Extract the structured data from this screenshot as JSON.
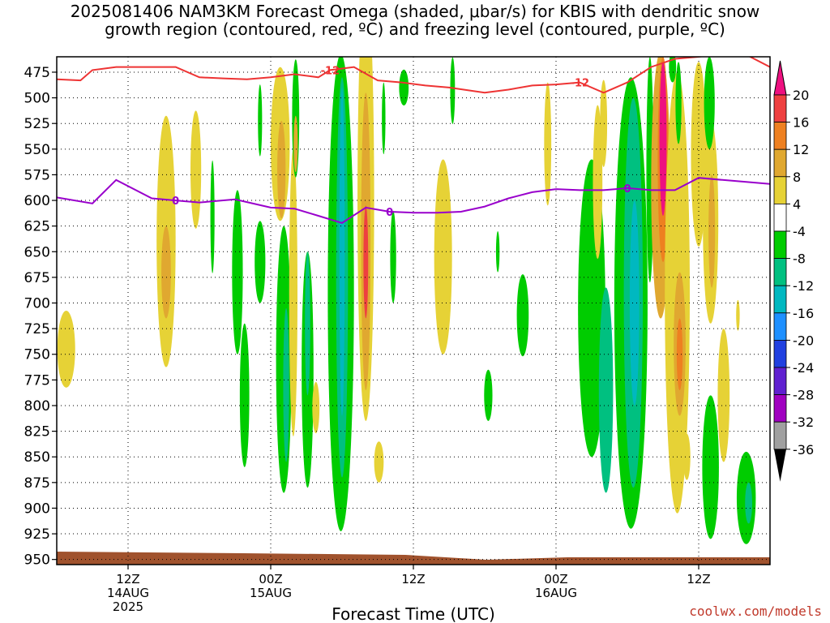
{
  "title": {
    "line1": "2025081406 NAM3KM Forecast Omega (shaded, μbar/s) for KBIS with dendritic snow",
    "line2": "growth region (contoured, red, ºC) and freezing level (contoured, purple, ºC)"
  },
  "credit": "coolwx.com/models",
  "chart_data": {
    "type": "heatmap",
    "xlabel": "Forecast Time (UTC)",
    "ylabel": "",
    "x_axis": {
      "range_hours": [
        0,
        60
      ],
      "ticks": [
        {
          "hour": 6,
          "lines": [
            "12Z",
            "14AUG",
            "2025"
          ]
        },
        {
          "hour": 18,
          "lines": [
            "00Z",
            "15AUG"
          ]
        },
        {
          "hour": 30,
          "lines": [
            "12Z"
          ]
        },
        {
          "hour": 42,
          "lines": [
            "00Z",
            "16AUG"
          ]
        },
        {
          "hour": 54,
          "lines": [
            "12Z"
          ]
        }
      ]
    },
    "y_axis": {
      "range_hPa": [
        460,
        955
      ],
      "ticks": [
        475,
        500,
        525,
        550,
        575,
        600,
        625,
        650,
        675,
        700,
        725,
        750,
        775,
        800,
        825,
        850,
        875,
        900,
        925,
        950
      ],
      "grid": true
    },
    "colorbar": {
      "labels": [
        "20",
        "16",
        "12",
        "8",
        "4",
        "-4",
        "-8",
        "-12",
        "-16",
        "-20",
        "-24",
        "-28",
        "-32",
        "-36"
      ],
      "bands": [
        {
          "from": 16,
          "to": 20,
          "color": "#ee4040"
        },
        {
          "from": 12,
          "to": 16,
          "color": "#ee8020"
        },
        {
          "from": 8,
          "to": 12,
          "color": "#e0a830"
        },
        {
          "from": 4,
          "to": 8,
          "color": "#e6d236"
        },
        {
          "from": -4,
          "to": 4,
          "color": "#ffffff"
        },
        {
          "from": -8,
          "to": -4,
          "color": "#00cc00"
        },
        {
          "from": -12,
          "to": -8,
          "color": "#00c080"
        },
        {
          "from": -16,
          "to": -12,
          "color": "#00b8c0"
        },
        {
          "from": -20,
          "to": -16,
          "color": "#1e90ff"
        },
        {
          "from": -24,
          "to": -20,
          "color": "#2040e0"
        },
        {
          "from": -28,
          "to": -24,
          "color": "#6020d0"
        },
        {
          "from": -32,
          "to": -28,
          "color": "#a000c0"
        },
        {
          "from": -36,
          "to": -32,
          "color": "#a0a0a0"
        }
      ],
      "top_arrow_color": "#ee1080",
      "bottom_arrow_color": "#000000"
    },
    "freezing_level": {
      "label": "0",
      "color": "#9900cc",
      "x": [
        0,
        3,
        5,
        8,
        10,
        12,
        15,
        18,
        20,
        22,
        24,
        26,
        28,
        30,
        32,
        34,
        36,
        38,
        40,
        42,
        44,
        46,
        48,
        50,
        52,
        54,
        56,
        58,
        60
      ],
      "p": [
        597,
        603,
        580,
        598,
        600,
        602,
        599,
        607,
        608,
        615,
        622,
        607,
        611,
        612,
        612,
        611,
        606,
        598,
        592,
        589,
        590,
        590,
        588,
        590,
        590,
        578,
        580,
        582,
        584
      ]
    },
    "dgz_minus12": {
      "label": "-12",
      "color": "#ee3333",
      "x": [
        0,
        2,
        3,
        5,
        8,
        10,
        12,
        14,
        16,
        18,
        20,
        22,
        23,
        25,
        27,
        29,
        31,
        33,
        36,
        38,
        40,
        42,
        44,
        46,
        48,
        50,
        52,
        54,
        56,
        58,
        60
      ],
      "p": [
        482,
        483,
        473,
        470,
        470,
        470,
        480,
        481,
        482,
        480,
        477,
        480,
        473,
        470,
        483,
        485,
        488,
        490,
        495,
        492,
        488,
        487,
        485,
        495,
        485,
        470,
        462,
        460,
        457,
        458,
        470
      ]
    },
    "omega_cells": [
      {
        "x": 0.8,
        "p": 745,
        "w": 1.5,
        "h": 75,
        "v": 6
      },
      {
        "x": 9.2,
        "p": 640,
        "w": 1.6,
        "h": 245,
        "v": 5
      },
      {
        "x": 9.2,
        "p": 670,
        "w": 0.8,
        "h": 90,
        "v": 9
      },
      {
        "x": 11.7,
        "p": 570,
        "w": 0.9,
        "h": 115,
        "v": 5
      },
      {
        "x": 13.1,
        "p": 616,
        "w": 0.35,
        "h": 110,
        "v": -5
      },
      {
        "x": 15.2,
        "p": 670,
        "w": 0.9,
        "h": 160,
        "v": -6
      },
      {
        "x": 15.8,
        "p": 790,
        "w": 0.8,
        "h": 140,
        "v": -5
      },
      {
        "x": 17.1,
        "p": 660,
        "w": 0.9,
        "h": 80,
        "v": -6
      },
      {
        "x": 17.1,
        "p": 522,
        "w": 0.35,
        "h": 70,
        "v": -5
      },
      {
        "x": 18.8,
        "p": 545,
        "w": 1.6,
        "h": 150,
        "v": 5
      },
      {
        "x": 18.9,
        "p": 570,
        "w": 0.7,
        "h": 95,
        "v": 10
      },
      {
        "x": 19.1,
        "p": 755,
        "w": 1.3,
        "h": 260,
        "v": -6
      },
      {
        "x": 19.3,
        "p": 780,
        "w": 0.5,
        "h": 150,
        "v": -10
      },
      {
        "x": 19.9,
        "p": 690,
        "w": 0.7,
        "h": 280,
        "v": 5
      },
      {
        "x": 20.1,
        "p": 520,
        "w": 0.6,
        "h": 115,
        "v": -6
      },
      {
        "x": 20.1,
        "p": 545,
        "w": 0.35,
        "h": 55,
        "v": 10
      },
      {
        "x": 21.1,
        "p": 765,
        "w": 1.0,
        "h": 230,
        "v": -6
      },
      {
        "x": 21.1,
        "p": 720,
        "w": 0.45,
        "h": 140,
        "v": -10
      },
      {
        "x": 21.8,
        "p": 802,
        "w": 0.6,
        "h": 50,
        "v": 5
      },
      {
        "x": 23.9,
        "p": 690,
        "w": 2.2,
        "h": 465,
        "v": -7
      },
      {
        "x": 24.0,
        "p": 675,
        "w": 1.0,
        "h": 390,
        "v": -11
      },
      {
        "x": 24.0,
        "p": 650,
        "w": 0.45,
        "h": 320,
        "v": -15
      },
      {
        "x": 26.0,
        "p": 600,
        "w": 1.4,
        "h": 430,
        "v": 6
      },
      {
        "x": 26.0,
        "p": 640,
        "w": 0.8,
        "h": 290,
        "v": 11
      },
      {
        "x": 26.0,
        "p": 660,
        "w": 0.4,
        "h": 110,
        "v": 17
      },
      {
        "x": 27.5,
        "p": 520,
        "w": 0.3,
        "h": 70,
        "v": -5
      },
      {
        "x": 27.1,
        "p": 855,
        "w": 0.8,
        "h": 40,
        "v": 6
      },
      {
        "x": 28.3,
        "p": 655,
        "w": 0.5,
        "h": 90,
        "v": -5
      },
      {
        "x": 29.2,
        "p": 490,
        "w": 0.8,
        "h": 35,
        "v": -5
      },
      {
        "x": 32.5,
        "p": 655,
        "w": 1.5,
        "h": 190,
        "v": 5
      },
      {
        "x": 33.3,
        "p": 493,
        "w": 0.4,
        "h": 65,
        "v": -5
      },
      {
        "x": 36.3,
        "p": 790,
        "w": 0.7,
        "h": 50,
        "v": -6
      },
      {
        "x": 37.1,
        "p": 650,
        "w": 0.3,
        "h": 40,
        "v": -5
      },
      {
        "x": 39.2,
        "p": 712,
        "w": 1.0,
        "h": 80,
        "v": -6
      },
      {
        "x": 41.3,
        "p": 545,
        "w": 0.6,
        "h": 120,
        "v": 5
      },
      {
        "x": 45.0,
        "p": 705,
        "w": 2.3,
        "h": 290,
        "v": -7
      },
      {
        "x": 46.2,
        "p": 785,
        "w": 1.2,
        "h": 200,
        "v": -11
      },
      {
        "x": 45.5,
        "p": 582,
        "w": 0.8,
        "h": 150,
        "v": 5
      },
      {
        "x": 46.0,
        "p": 525,
        "w": 0.6,
        "h": 85,
        "v": 6
      },
      {
        "x": 48.3,
        "p": 700,
        "w": 2.8,
        "h": 440,
        "v": -7
      },
      {
        "x": 48.5,
        "p": 690,
        "w": 1.6,
        "h": 380,
        "v": -11
      },
      {
        "x": 48.6,
        "p": 700,
        "w": 0.8,
        "h": 200,
        "v": -15
      },
      {
        "x": 49.9,
        "p": 570,
        "w": 0.6,
        "h": 220,
        "v": -6
      },
      {
        "x": 50.8,
        "p": 585,
        "w": 1.6,
        "h": 260,
        "v": 10
      },
      {
        "x": 51.0,
        "p": 560,
        "w": 0.9,
        "h": 200,
        "v": 15
      },
      {
        "x": 51.0,
        "p": 540,
        "w": 0.6,
        "h": 150,
        "v": 22
      },
      {
        "x": 52.2,
        "p": 690,
        "w": 2.1,
        "h": 430,
        "v": 6
      },
      {
        "x": 52.4,
        "p": 740,
        "w": 1.0,
        "h": 140,
        "v": 10
      },
      {
        "x": 52.4,
        "p": 750,
        "w": 0.5,
        "h": 70,
        "v": 15
      },
      {
        "x": 51.8,
        "p": 470,
        "w": 0.6,
        "h": 30,
        "v": -5
      },
      {
        "x": 52.3,
        "p": 505,
        "w": 0.5,
        "h": 80,
        "v": -6
      },
      {
        "x": 53.0,
        "p": 850,
        "w": 0.6,
        "h": 45,
        "v": 5
      },
      {
        "x": 54.0,
        "p": 555,
        "w": 1.3,
        "h": 180,
        "v": 5
      },
      {
        "x": 55.0,
        "p": 620,
        "w": 1.3,
        "h": 200,
        "v": 6
      },
      {
        "x": 55.1,
        "p": 630,
        "w": 0.55,
        "h": 110,
        "v": 10
      },
      {
        "x": 54.9,
        "p": 505,
        "w": 0.9,
        "h": 90,
        "v": -6
      },
      {
        "x": 55.0,
        "p": 860,
        "w": 1.4,
        "h": 140,
        "v": -5
      },
      {
        "x": 56.1,
        "p": 790,
        "w": 1.0,
        "h": 130,
        "v": 5
      },
      {
        "x": 58.0,
        "p": 890,
        "w": 1.6,
        "h": 90,
        "v": -6
      },
      {
        "x": 58.2,
        "p": 895,
        "w": 0.6,
        "h": 40,
        "v": -10
      },
      {
        "x": 57.3,
        "p": 712,
        "w": 0.3,
        "h": 30,
        "v": 5
      }
    ]
  }
}
